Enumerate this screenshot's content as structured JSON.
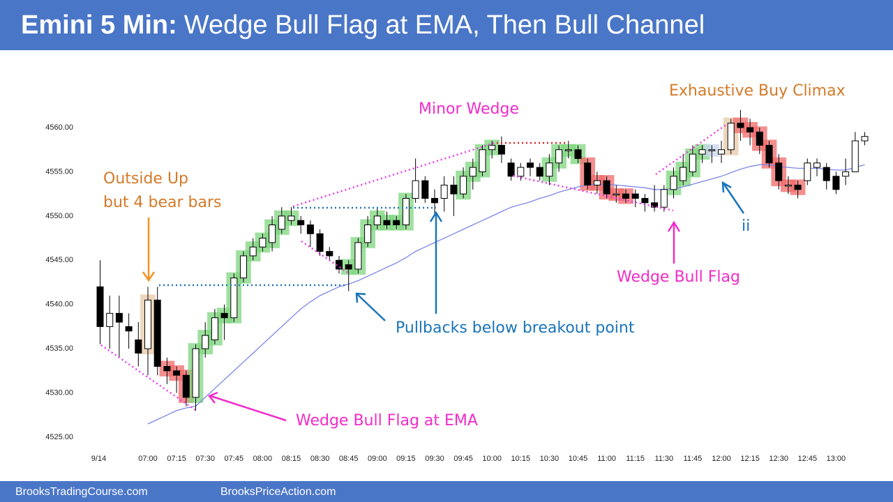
{
  "chart_data": {
    "type": "candlestick",
    "title_lead": "Emini 5 Min:",
    "title": "Wedge Bull Flag at EMA, Then Bull Channel",
    "annotations": [
      "Outside Up",
      "but 4 bear bars",
      "Wedge Bull Flag at EMA",
      "Pullbacks below breakout point",
      "Minor Wedge",
      "Exhaustive Buy Climax",
      "Wedge Bull Flag",
      "ii"
    ],
    "categories": [
      "9/14",
      null,
      null,
      null,
      null,
      "07:00",
      null,
      null,
      "07:15",
      null,
      null,
      "07:30",
      null,
      null,
      "07:45",
      null,
      null,
      "08:00",
      null,
      null,
      "08:15",
      null,
      null,
      "08:30",
      null,
      null,
      "08:45",
      null,
      null,
      "09:00",
      null,
      null,
      "09:15",
      null,
      null,
      "09:30",
      null,
      null,
      "09:45",
      null,
      null,
      "10:00",
      null,
      null,
      "10:15",
      null,
      null,
      "10:30",
      null,
      null,
      "10:45",
      null,
      null,
      "11:00",
      null,
      null,
      "11:15",
      null,
      null,
      "11:30",
      null,
      null,
      "11:45",
      null,
      null,
      "12:00",
      null,
      null,
      "12:15",
      null,
      null,
      "12:30",
      null,
      null,
      "12:45",
      null,
      null,
      "13:00",
      null,
      null,
      null
    ],
    "open": [
      4542,
      4537.5,
      4539,
      4537.5,
      4536,
      4535,
      4540.5,
      4533,
      4532.5,
      4532,
      4529.5,
      4535,
      4536,
      4539,
      4538.5,
      4543,
      4545.5,
      4546.5,
      4547,
      4548.5,
      4549.5,
      4549.5,
      4549,
      4548,
      4546,
      4545,
      4544.5,
      4544,
      4547,
      4549,
      4549.5,
      4549.5,
      4549,
      4552,
      4554,
      4552,
      4552,
      4553.5,
      4552.5,
      4554.5,
      4555,
      4557.5,
      4558,
      4556,
      4554.5,
      4556,
      4555.5,
      4554.5,
      4556,
      4557.5,
      4557.5,
      4556,
      4553.5,
      4554,
      4552.5,
      4552.5,
      4552.5,
      4552,
      4551.5,
      4551,
      4553,
      4554,
      4555,
      4557,
      4557.5,
      4557,
      4557.5,
      4560.5,
      4560,
      4559.5,
      4558,
      4556,
      4553.5,
      4553.5,
      4554,
      4555.5,
      4555.5,
      4554.5,
      4554.5,
      4555,
      4558.5
    ],
    "high": [
      4545,
      4541,
      4541,
      4539,
      4538,
      4542,
      4542,
      4534,
      4533,
      4532.5,
      4535.5,
      4538,
      4539.5,
      4540,
      4543.5,
      4546,
      4547.5,
      4548,
      4550,
      4551,
      4551,
      4550,
      4549.5,
      4548.5,
      4546.5,
      4545.5,
      4545,
      4547.5,
      4550,
      4551,
      4550.5,
      4550,
      4552.5,
      4556.5,
      4554.5,
      4553,
      4554.5,
      4554.5,
      4555.5,
      4556.5,
      4558,
      4558.5,
      4559,
      4556.5,
      4556,
      4556.5,
      4556,
      4557,
      4558,
      4558.5,
      4558,
      4556.5,
      4555,
      4554.5,
      4553.5,
      4553,
      4553,
      4552.5,
      4553.5,
      4553.5,
      4555.5,
      4557,
      4558,
      4558,
      4558,
      4558.5,
      4561,
      4562,
      4561,
      4560,
      4558.5,
      4557,
      4554.5,
      4554,
      4556.5,
      4556.5,
      4556,
      4555,
      4556.5,
      4559.5,
      4559.5
    ],
    "low": [
      4535.5,
      4535,
      4534,
      4535,
      4533,
      4532,
      4532,
      4531,
      4530,
      4528.5,
      4528,
      4534,
      4535.5,
      4536,
      4538,
      4542.5,
      4545,
      4546,
      4546,
      4548,
      4549,
      4548,
      4546.5,
      4545.5,
      4545,
      4543.5,
      4541.5,
      4543.5,
      4546.5,
      4548.5,
      4548.5,
      4548.5,
      4548.5,
      4551.5,
      4551.5,
      4550,
      4550.5,
      4550,
      4552,
      4553,
      4554.5,
      4556.5,
      4556,
      4554,
      4554,
      4554.5,
      4554,
      4553.5,
      4555,
      4556.5,
      4556,
      4553,
      4552.5,
      4552,
      4551.5,
      4551.5,
      4551,
      4550.5,
      4550.5,
      4550.5,
      4552,
      4553.5,
      4554.5,
      4556,
      4556,
      4556,
      4557,
      4558.5,
      4558,
      4557,
      4555.5,
      4553,
      4552.5,
      4552,
      4553.5,
      4554.5,
      4553,
      4552.5,
      4553.5,
      4555,
      4558
    ],
    "close": [
      4537.5,
      4539,
      4538,
      4537,
      4534.5,
      4540.5,
      4533,
      4532.5,
      4532,
      4529.5,
      4535,
      4536.5,
      4538.5,
      4538.5,
      4543,
      4545.5,
      4546.5,
      4547.5,
      4549,
      4550,
      4550,
      4549,
      4548,
      4546,
      4545.5,
      4544,
      4544,
      4547,
      4549,
      4550,
      4549,
      4549,
      4552,
      4554,
      4552,
      4551.5,
      4553.5,
      4552.5,
      4554.5,
      4555.5,
      4557.5,
      4558,
      4557,
      4554.5,
      4555.5,
      4555.5,
      4554.5,
      4556,
      4557.5,
      4557.5,
      4556.5,
      4553.5,
      4554,
      4552.5,
      4552.5,
      4552,
      4552,
      4551.5,
      4551,
      4553,
      4554.5,
      4555.5,
      4557,
      4557.5,
      4557.5,
      4557.5,
      4560.5,
      4560,
      4559.5,
      4558,
      4556,
      4554,
      4553.5,
      4553,
      4556,
      4556,
      4554,
      4553,
      4555,
      4558.5,
      4559
    ],
    "ema": [
      null,
      null,
      null,
      null,
      null,
      4526.5,
      4527,
      4527.5,
      4528,
      4528.3,
      4528.5,
      4529.5,
      4530.5,
      4531.5,
      4532.5,
      4533.5,
      4534.5,
      4535.5,
      4536.5,
      4537.5,
      4538.5,
      4539.5,
      4540.3,
      4541,
      4541.5,
      4542,
      4542.3,
      4542.7,
      4543.2,
      4543.7,
      4544.2,
      4544.7,
      4545.3,
      4546,
      4546.5,
      4547,
      4547.5,
      4548,
      4548.5,
      4549,
      4549.5,
      4550,
      4550.5,
      4551,
      4551.3,
      4551.6,
      4552,
      4552.3,
      4552.7,
      4553,
      4553.3,
      4553.5,
      4553.6,
      4553.6,
      4553.5,
      4553.4,
      4553.3,
      4553.2,
      4553,
      4553,
      4553.1,
      4553.3,
      4553.6,
      4553.9,
      4554.2,
      4554.5,
      4554.9,
      4555.3,
      4555.6,
      4555.8,
      4555.8,
      4555.6,
      4555.5,
      4555.4,
      4555.4,
      4555.4,
      4555.3,
      4555.2,
      4555.2,
      4555.5,
      4555.8
    ],
    "ema_color": "#7b86e8",
    "bull_color": "#ffffff",
    "bear_color": "#000000",
    "highlight": [
      null,
      null,
      null,
      null,
      null,
      "#e8c9a8",
      null,
      "#f06a6a",
      "#f06a6a",
      "#f06a6a",
      "#7fd67f",
      "#7fd67f",
      "#7fd67f",
      "#7fd67f",
      "#7fd67f",
      "#7fd67f",
      "#7fd67f",
      "#7fd67f",
      "#7fd67f",
      "#7fd67f",
      "#7fd67f",
      null,
      null,
      null,
      null,
      null,
      "#7fd67f",
      "#7fd67f",
      "#7fd67f",
      "#7fd67f",
      "#7fd67f",
      "#7fd67f",
      "#7fd67f",
      null,
      null,
      null,
      null,
      null,
      "#7fd67f",
      "#7fd67f",
      "#7fd67f",
      "#7fd67f",
      null,
      null,
      null,
      null,
      null,
      "#7fd67f",
      "#7fd67f",
      "#7fd67f",
      "#7fd67f",
      "#f06a6a",
      "#f06a6a",
      "#f06a6a",
      "#f06a6a",
      "#f06a6a",
      null,
      null,
      null,
      null,
      "#7fd67f",
      "#7fd67f",
      "#7fd67f",
      "#7fd67f",
      "#c9d6ee",
      null,
      "#e8c9a8",
      "#f06a6a",
      "#f06a6a",
      "#f06a6a",
      "#f06a6a",
      "#f06a6a",
      "#f06a6a",
      "#f06a6a",
      null,
      null,
      null,
      null,
      null,
      null,
      null
    ],
    "ylim": [
      4524,
      4564
    ],
    "yticks": [
      {
        "value": 4525,
        "label": "4525.00"
      },
      {
        "value": 4530,
        "label": "4530.00"
      },
      {
        "value": 4535,
        "label": "4535.00"
      },
      {
        "value": 4540,
        "label": "4540.00"
      },
      {
        "value": 4545,
        "label": "4545.00"
      },
      {
        "value": 4550,
        "label": "4550.00"
      },
      {
        "value": 4555,
        "label": "4555.00"
      },
      {
        "value": 4560,
        "label": "4560.00"
      }
    ]
  },
  "footer": {
    "left": "BrooksTradingCourse.com",
    "right": "BrooksPriceAction.com"
  }
}
